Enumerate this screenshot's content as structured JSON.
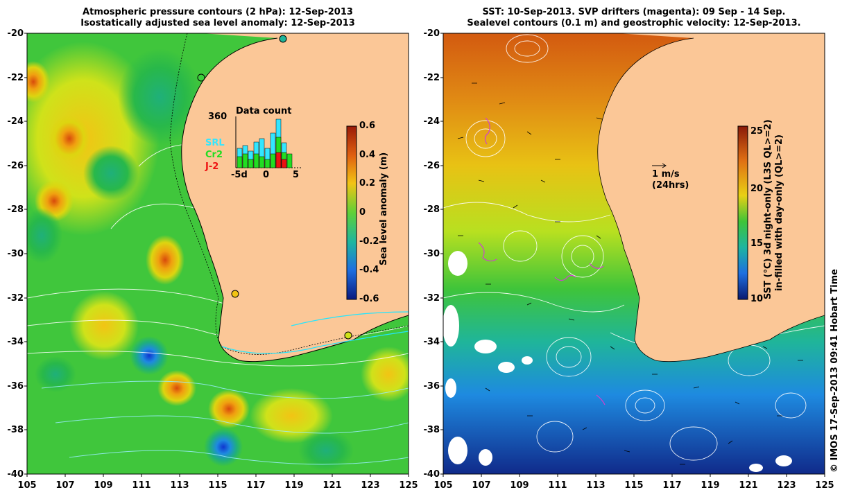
{
  "left_panel": {
    "title_line1": "Atmospheric pressure contours (2 hPa): 12-Sep-2013",
    "title_line2": "Isostatically adjusted sea level anomaly: 12-Sep-2013",
    "colorbar_label": "Sea level anomaly (m)",
    "colorbar_ticks": [
      "0.6",
      "0.4",
      "0.2",
      "0",
      "-0.2",
      "-0.4",
      "-0.6"
    ],
    "inset": {
      "title": "Data count",
      "max_label": "360",
      "x_ticks": [
        "-5d",
        "0",
        "5"
      ],
      "legend": [
        {
          "label": "SRL",
          "color": "#33e6ff"
        },
        {
          "label": "Cr2",
          "color": "#22dd22"
        },
        {
          "label": "J-2",
          "color": "#ee1111"
        }
      ]
    }
  },
  "right_panel": {
    "title_line1": "SST: 10-Sep-2013. SVP drifters (magenta): 09 Sep - 14 Sep.",
    "title_line2": "Sealevel contours (0.1 m) and geostrophic velocity: 12-Sep-2013.",
    "velocity_scale": "1 m/s",
    "velocity_scale_note": "(24hrs)",
    "colorbar_label_line1": "SST (°C) 3d night-only (L3S QL>=2)",
    "colorbar_label_line2": "in-filled with day-only (QL>=2)",
    "colorbar_ticks": [
      "25",
      "20",
      "15",
      "10"
    ]
  },
  "axes": {
    "lat_ticks": [
      "-20",
      "-22",
      "-24",
      "-26",
      "-28",
      "-30",
      "-32",
      "-34",
      "-36",
      "-38",
      "-40"
    ],
    "lon_ticks": [
      "105",
      "107",
      "109",
      "111",
      "113",
      "115",
      "117",
      "119",
      "121",
      "123",
      "125"
    ]
  },
  "credit": "© IMOS 17-Sep-2013 09:41 Hobart Time",
  "colors": {
    "land": "#fbc797",
    "ocean_mid": "#36c43a",
    "sla_high": "#e07a10",
    "sla_low": "#1e5fd0"
  }
}
